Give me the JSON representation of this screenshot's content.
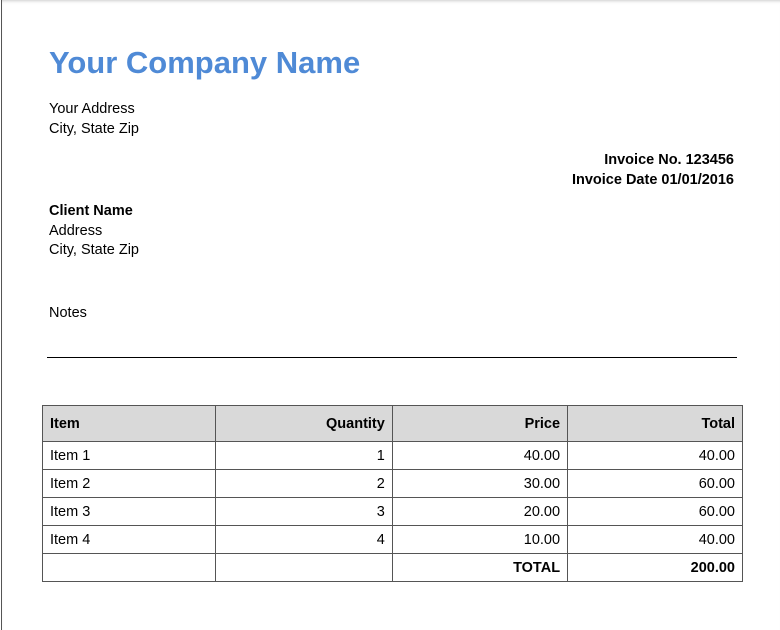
{
  "company": {
    "name": "Your Company Name",
    "address": "Your Address",
    "city": "City, State Zip",
    "color": "#4f8ad6"
  },
  "invoice": {
    "number": "Invoice No. 123456",
    "date": "Invoice Date 01/01/2016"
  },
  "client": {
    "name": "Client Name",
    "address": "Address",
    "city": "City, State Zip"
  },
  "notes": "Notes",
  "table": {
    "headers": [
      "Item",
      "Quantity",
      "Price",
      "Total"
    ],
    "rows": [
      [
        "Item 1",
        "1",
        "40.00",
        "40.00"
      ],
      [
        "Item 2",
        "2",
        "30.00",
        "60.00"
      ],
      [
        "Item 3",
        "3",
        "20.00",
        "60.00"
      ],
      [
        "Item 4",
        "4",
        "10.00",
        "40.00"
      ]
    ],
    "total_label": "TOTAL",
    "total_value": "200.00"
  }
}
